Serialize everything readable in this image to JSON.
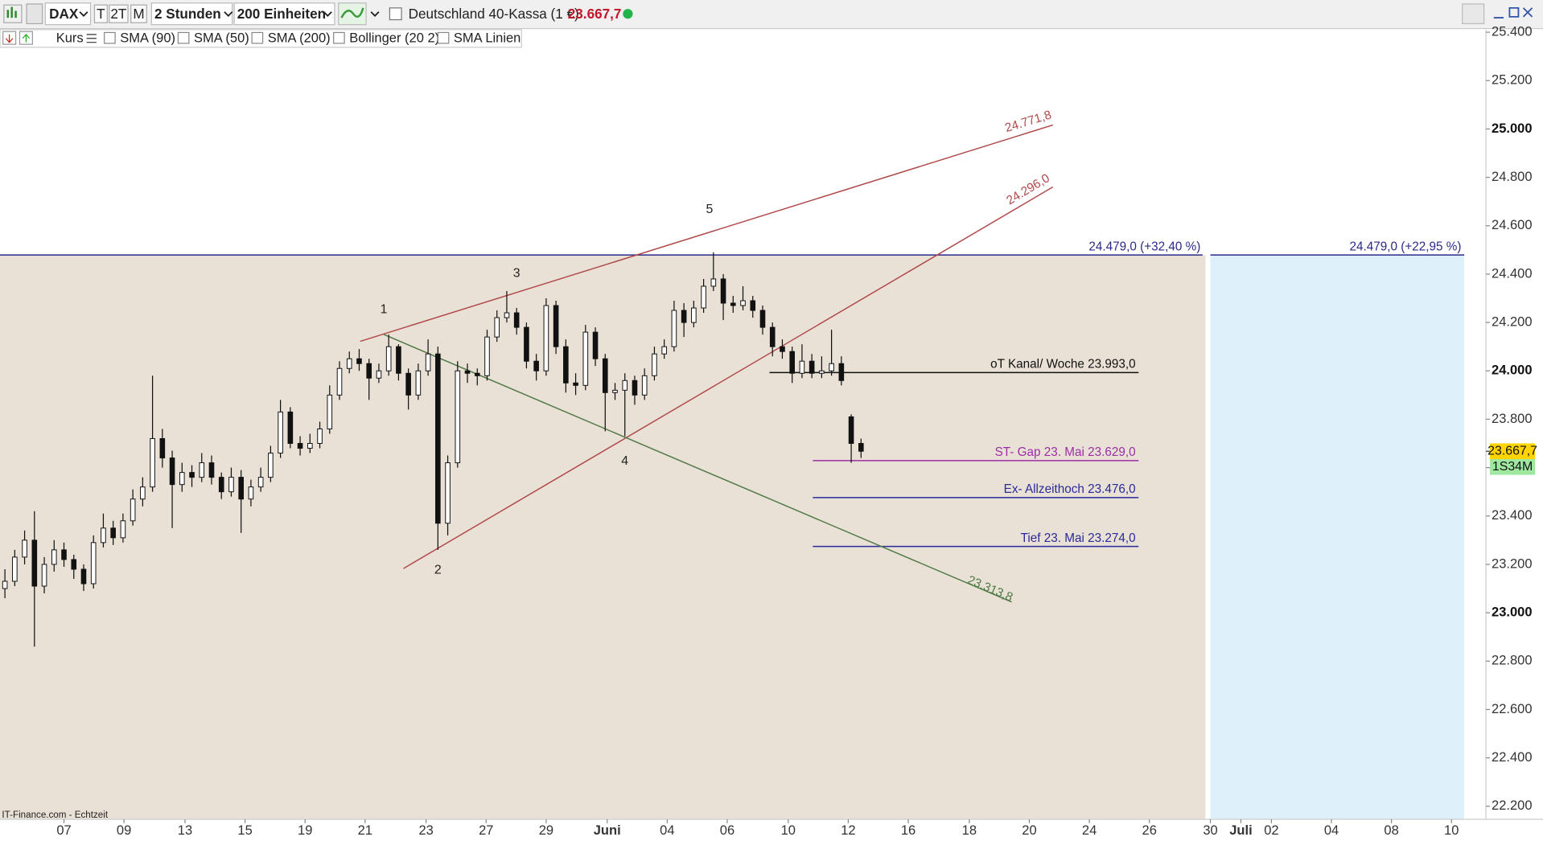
{
  "toolbar": {
    "symbol": "DAX",
    "periods": [
      "T",
      "2T",
      "M"
    ],
    "interval": "2 Stunden",
    "units": "200 Einheiten",
    "instrument": "Deutschland 40-Kassa (1 €)",
    "indicators": [
      "Kurs",
      "SMA (90)",
      "SMA (50)",
      "SMA (200)",
      "Bollinger (20 2)",
      "SMA Linien"
    ]
  },
  "chart_data": {
    "type": "candlestick",
    "series": {
      "open": [
        23100,
        23130,
        23230,
        23300,
        23110,
        23200,
        23260,
        23220,
        23180,
        23120,
        23290,
        23350,
        23310,
        23380,
        23470,
        23520,
        23720,
        23640,
        23530,
        23580,
        23560,
        23620,
        23560,
        23500,
        23560,
        23470,
        23520,
        23560,
        23660,
        23830,
        23700,
        23680,
        23700,
        23760,
        23900,
        24010,
        24050,
        24030,
        23970,
        24000,
        24100,
        23990,
        23900,
        24000,
        24070,
        23370,
        23620,
        24000,
        23990,
        23980,
        24140,
        24220,
        24240,
        24180,
        24040,
        24000,
        24270,
        24100,
        23950,
        23940,
        24160,
        24050,
        23910,
        23920,
        23960,
        23900,
        23980,
        24070,
        24100,
        24250,
        24200,
        24260,
        24350,
        24380,
        24280,
        24270,
        24290,
        24250,
        24180,
        24100,
        24080,
        23990,
        24040,
        23990,
        24000,
        24030,
        23810,
        23700
      ],
      "high": [
        23180,
        23260,
        23340,
        23420,
        23230,
        23300,
        23290,
        23240,
        23200,
        23320,
        23410,
        23380,
        23410,
        23510,
        23560,
        23980,
        23760,
        23670,
        23620,
        23610,
        23660,
        23650,
        23580,
        23600,
        23590,
        23550,
        23600,
        23690,
        23880,
        23850,
        23730,
        23740,
        23790,
        23940,
        24040,
        24080,
        24090,
        24050,
        24030,
        24150,
        24110,
        24010,
        24030,
        24130,
        24100,
        23650,
        24040,
        24030,
        24010,
        24170,
        24250,
        24330,
        24260,
        24200,
        24070,
        24300,
        24290,
        24130,
        23990,
        24190,
        24180,
        24070,
        23950,
        23990,
        23980,
        24010,
        24100,
        24130,
        24290,
        24280,
        24290,
        24380,
        24490,
        24400,
        24310,
        24350,
        24310,
        24270,
        24200,
        24130,
        24100,
        24110,
        24070,
        24060,
        24170,
        24060,
        23820,
        23720
      ],
      "low": [
        23060,
        23110,
        23200,
        22860,
        23080,
        23170,
        23190,
        23140,
        23090,
        23100,
        23270,
        23280,
        23290,
        23360,
        23440,
        23500,
        23600,
        23350,
        23500,
        23520,
        23540,
        23530,
        23470,
        23480,
        23330,
        23440,
        23500,
        23540,
        23640,
        23680,
        23650,
        23660,
        23680,
        23740,
        23880,
        23990,
        24000,
        23880,
        23950,
        23980,
        23960,
        23840,
        23880,
        23980,
        23260,
        23320,
        23600,
        23950,
        23940,
        23960,
        24120,
        24200,
        24150,
        24010,
        23960,
        23980,
        24070,
        23910,
        23900,
        23920,
        24020,
        23750,
        23880,
        23730,
        23860,
        23880,
        23960,
        24050,
        24080,
        24140,
        24180,
        24240,
        24330,
        24210,
        24240,
        24250,
        24220,
        24150,
        24060,
        24050,
        23950,
        23970,
        23970,
        23970,
        23980,
        23940,
        23620,
        23640
      ],
      "close": [
        23130,
        23230,
        23300,
        23110,
        23200,
        23260,
        23220,
        23180,
        23120,
        23290,
        23350,
        23310,
        23380,
        23470,
        23520,
        23720,
        23640,
        23530,
        23580,
        23560,
        23620,
        23560,
        23500,
        23560,
        23470,
        23520,
        23560,
        23660,
        23830,
        23700,
        23680,
        23700,
        23760,
        23900,
        24010,
        24050,
        24030,
        23970,
        24000,
        24100,
        23990,
        23900,
        24000,
        24070,
        23370,
        23620,
        24000,
        23990,
        23980,
        24140,
        24220,
        24240,
        24180,
        24040,
        24000,
        24270,
        24100,
        23950,
        23940,
        24160,
        24050,
        23910,
        23920,
        23960,
        23900,
        23980,
        24070,
        24100,
        24250,
        24200,
        24260,
        24350,
        24380,
        24280,
        24270,
        24290,
        24250,
        24180,
        24100,
        24080,
        23990,
        24040,
        23990,
        24000,
        24030,
        23960,
        23700,
        23667.7
      ]
    },
    "ylim": [
      22146,
      25411
    ],
    "yticks": [
      {
        "value": 22200,
        "label": "22.200"
      },
      {
        "value": 22400,
        "label": "22.400"
      },
      {
        "value": 22600,
        "label": "22.600"
      },
      {
        "value": 22800,
        "label": "22.800"
      },
      {
        "value": 23000,
        "label": "23.000"
      },
      {
        "value": 23200,
        "label": "23.200"
      },
      {
        "value": 23400,
        "label": "23.400"
      },
      {
        "value": 23600,
        "label": "23.600"
      },
      {
        "value": 23800,
        "label": "23.800"
      },
      {
        "value": 24000,
        "label": "24.000"
      },
      {
        "value": 24200,
        "label": "24.200"
      },
      {
        "value": 24400,
        "label": "24.400"
      },
      {
        "value": 24600,
        "label": "24.600"
      },
      {
        "value": 24800,
        "label": "24.800"
      },
      {
        "value": 25000,
        "label": "25.000"
      },
      {
        "value": 25200,
        "label": "25.200"
      },
      {
        "value": 25400,
        "label": "25.400"
      }
    ],
    "xticks": [
      "07",
      "09",
      "13",
      "15",
      "19",
      "21",
      "23",
      "27",
      "29",
      "Juni",
      "04",
      "06",
      "10",
      "12",
      "16",
      "18",
      "20",
      "24",
      "26",
      "30",
      "Juli",
      "02",
      "04",
      "08",
      "10"
    ],
    "hlines": [
      {
        "value": 24479,
        "label": "24.479,0 (+32,40 %)",
        "color": "#2a2a8a"
      },
      {
        "value": 24479,
        "label": "24.479,0 (+22,95 %)",
        "color": "#2a2a8a"
      },
      {
        "value": 23993,
        "label": "oT Kanal/ Woche 23.993,0",
        "color": "#111111"
      },
      {
        "value": 23629,
        "label": "ST- Gap 23. Mai 23.629,0",
        "color": "#9b2fa5"
      },
      {
        "value": 23476,
        "label": "Ex- Allzeithoch 23.476,0",
        "color": "#2a2a9a"
      },
      {
        "value": 23274,
        "label": "Tief 23. Mai 23.274,0",
        "color": "#2a2a9a"
      }
    ],
    "trendlines": [
      {
        "label": "24.771,8",
        "color": "#b04a4a"
      },
      {
        "label": "24.296,0",
        "color": "#b04a4a"
      },
      {
        "label": "23.313,8",
        "color": "#4f7a45"
      }
    ],
    "wave_labels": [
      "1",
      "2",
      "3",
      "4",
      "5"
    ],
    "price_tag": {
      "value": 23667.7,
      "label": "23.667,7",
      "timer": "1S34M"
    },
    "source": "IT-Finance.com - Echtzeit"
  }
}
